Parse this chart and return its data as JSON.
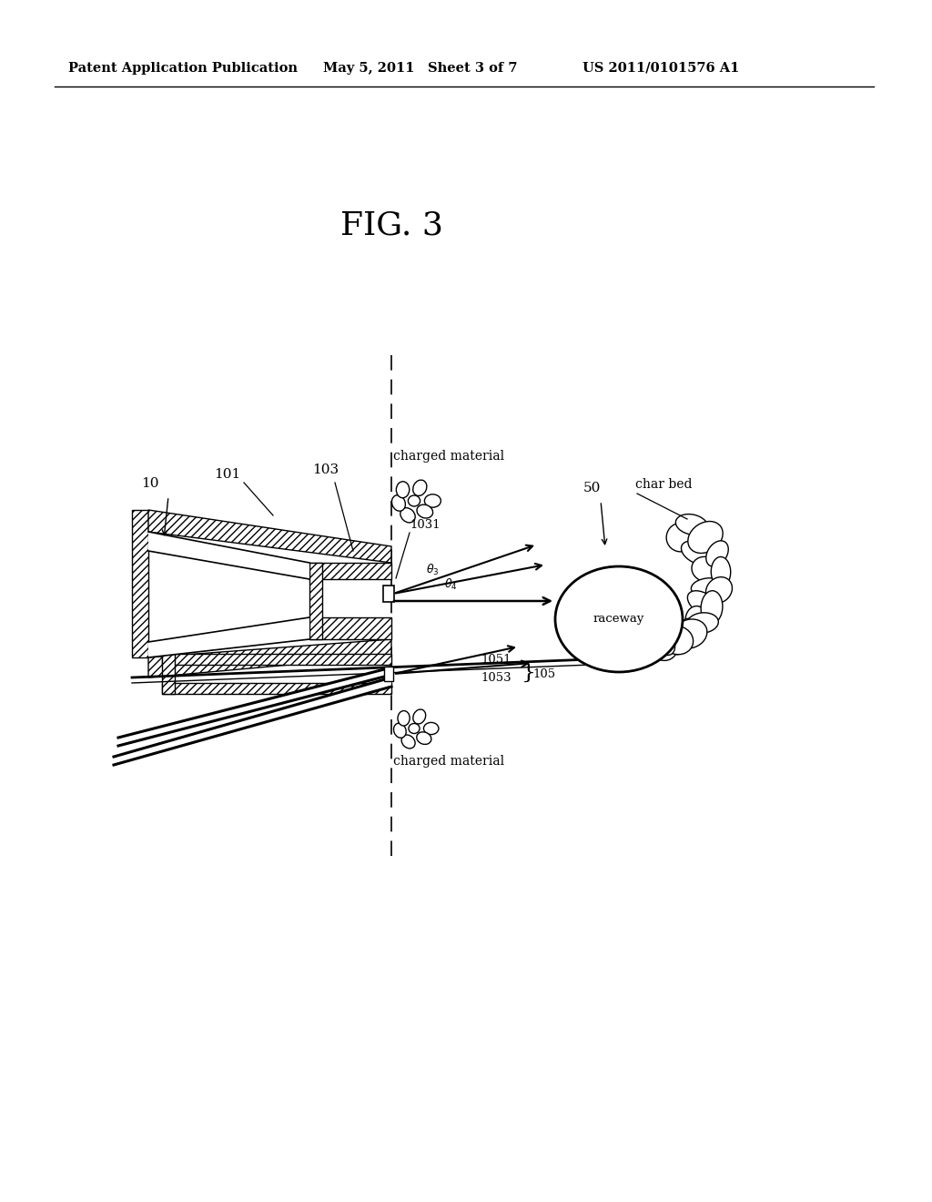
{
  "bg_color": "#ffffff",
  "header_text": "Patent Application Publication",
  "header_date": "May 5, 2011",
  "header_sheet": "Sheet 3 of 7",
  "header_patent": "US 2011/0101576 A1",
  "fig_label": "FIG. 3"
}
